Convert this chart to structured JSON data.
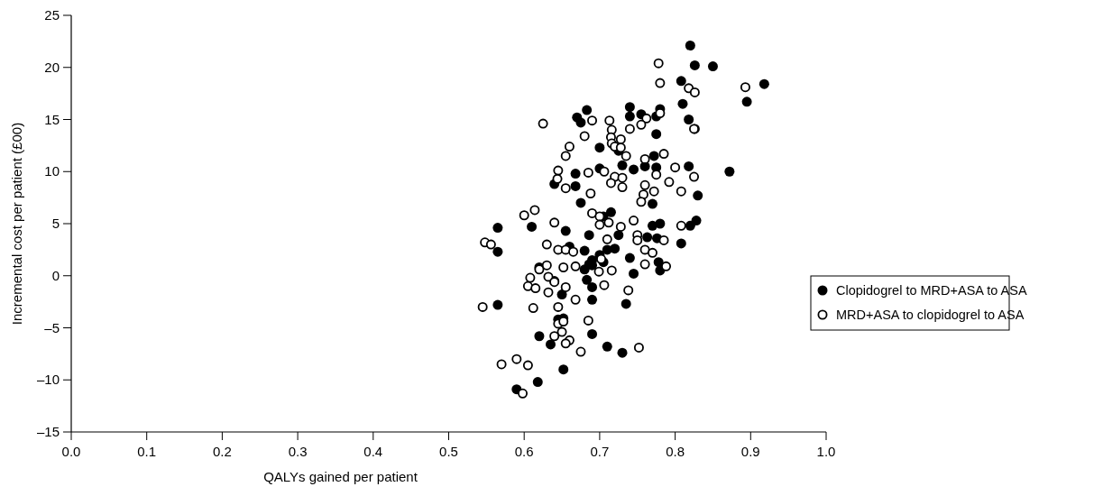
{
  "chart_data": {
    "type": "scatter",
    "xlabel": "QALYs gained per patient",
    "ylabel": "Incremental cost per patient (£00)",
    "xlim": [
      0,
      1
    ],
    "ylim": [
      -15,
      25
    ],
    "xticks": [
      {
        "value": 0,
        "label": "0.0"
      },
      {
        "value": 0.1,
        "label": "0.1"
      },
      {
        "value": 0.2,
        "label": "0.2"
      },
      {
        "value": 0.3,
        "label": "0.3"
      },
      {
        "value": 0.4,
        "label": "0.4"
      },
      {
        "value": 0.5,
        "label": "0.5"
      },
      {
        "value": 0.6,
        "label": "0.6"
      },
      {
        "value": 0.7,
        "label": "0.7"
      },
      {
        "value": 0.8,
        "label": "0.8"
      },
      {
        "value": 0.9,
        "label": "0.9"
      },
      {
        "value": 1,
        "label": "1.0"
      }
    ],
    "yticks": [
      {
        "value": -15,
        "label": "–15"
      },
      {
        "value": -10,
        "label": "–10"
      },
      {
        "value": -5,
        "label": "–5"
      },
      0,
      5,
      10,
      15,
      20,
      25
    ],
    "grid": false,
    "legend": "right",
    "marker": "circle",
    "series": [
      {
        "name": "Clopidogrel to MRD+ASA to ASA",
        "color": "#000000",
        "x": [
          0.82,
          0.826,
          0.85,
          0.918,
          0.808,
          0.895,
          0.81,
          0.818,
          0.826,
          0.78,
          0.775,
          0.755,
          0.74,
          0.74,
          0.683,
          0.67,
          0.675,
          0.725,
          0.73,
          0.7,
          0.7,
          0.745,
          0.76,
          0.775,
          0.775,
          0.772,
          0.818,
          0.872,
          0.83,
          0.64,
          0.668,
          0.668,
          0.675,
          0.77,
          0.77,
          0.78,
          0.82,
          0.828,
          0.808,
          0.776,
          0.763,
          0.778,
          0.78,
          0.745,
          0.74,
          0.725,
          0.72,
          0.715,
          0.705,
          0.686,
          0.655,
          0.565,
          0.565,
          0.61,
          0.66,
          0.68,
          0.69,
          0.7,
          0.69,
          0.705,
          0.71,
          0.686,
          0.68,
          0.683,
          0.62,
          0.64,
          0.65,
          0.69,
          0.735,
          0.565,
          0.69,
          0.645,
          0.652,
          0.62,
          0.635,
          0.69,
          0.71,
          0.73,
          0.652,
          0.59,
          0.618
        ],
        "values": [
          22.1,
          20.2,
          20.1,
          18.4,
          18.7,
          16.7,
          16.5,
          15,
          14.1,
          16,
          15.3,
          15.5,
          16.2,
          15.3,
          15.9,
          15.2,
          14.7,
          12,
          10.6,
          12.3,
          10.3,
          10.2,
          10.5,
          10.4,
          13.6,
          11.5,
          10.5,
          10,
          7.7,
          8.8,
          9.8,
          8.6,
          7,
          6.9,
          4.8,
          5,
          4.8,
          5.3,
          3.1,
          3.6,
          3.7,
          1.3,
          0.5,
          0.2,
          1.7,
          3.9,
          2.6,
          6.1,
          5.7,
          3.9,
          4.3,
          4.6,
          2.3,
          4.7,
          2.8,
          2.4,
          1.5,
          2,
          1,
          1.3,
          2.5,
          1.1,
          0.6,
          -0.4,
          0.8,
          -0.5,
          -1.8,
          -1.1,
          -2.7,
          -2.8,
          -2.3,
          -4.2,
          -4.1,
          -5.8,
          -6.6,
          -5.6,
          -6.8,
          -7.4,
          -9,
          -10.9,
          -10.2
        ]
      },
      {
        "name": "MRD+ASA to clopidogrel to ASA",
        "color": "#000000",
        "x": [
          0.778,
          0.78,
          0.818,
          0.826,
          0.893,
          0.825,
          0.78,
          0.762,
          0.755,
          0.74,
          0.713,
          0.716,
          0.715,
          0.716,
          0.72,
          0.728,
          0.728,
          0.69,
          0.68,
          0.66,
          0.655,
          0.625,
          0.76,
          0.735,
          0.785,
          0.8,
          0.792,
          0.808,
          0.825,
          0.775,
          0.772,
          0.76,
          0.758,
          0.755,
          0.72,
          0.715,
          0.73,
          0.73,
          0.706,
          0.685,
          0.688,
          0.645,
          0.644,
          0.655,
          0.6,
          0.614,
          0.64,
          0.69,
          0.7,
          0.7,
          0.712,
          0.728,
          0.745,
          0.75,
          0.75,
          0.76,
          0.77,
          0.76,
          0.785,
          0.788,
          0.808,
          0.548,
          0.556,
          0.63,
          0.645,
          0.655,
          0.665,
          0.668,
          0.652,
          0.63,
          0.62,
          0.608,
          0.632,
          0.64,
          0.605,
          0.615,
          0.632,
          0.655,
          0.668,
          0.699,
          0.702,
          0.71,
          0.716,
          0.706,
          0.738,
          0.545,
          0.612,
          0.645,
          0.645,
          0.652,
          0.65,
          0.64,
          0.66,
          0.685,
          0.675,
          0.655,
          0.752,
          0.57,
          0.59,
          0.605,
          0.598
        ],
        "values": [
          20.4,
          18.5,
          18,
          17.6,
          18.1,
          14.1,
          15.6,
          15.1,
          14.5,
          14.1,
          14.9,
          14,
          13.3,
          12.7,
          12.4,
          13.1,
          12.3,
          14.9,
          13.4,
          12.4,
          11.5,
          14.6,
          11.2,
          11.5,
          11.7,
          10.4,
          9,
          8.1,
          9.5,
          9.7,
          8.1,
          8.7,
          7.8,
          7.1,
          9.5,
          8.9,
          9.4,
          8.5,
          10,
          9.9,
          7.9,
          10.1,
          9.3,
          8.4,
          5.8,
          6.3,
          5.1,
          6,
          5.7,
          4.9,
          5.1,
          4.7,
          5.3,
          3.9,
          3.4,
          2.5,
          2.2,
          1.1,
          3.4,
          0.9,
          4.8,
          3.2,
          3,
          3,
          2.5,
          2.5,
          2.3,
          0.9,
          0.8,
          1,
          0.6,
          -0.2,
          -0.1,
          -0.6,
          -1,
          -1.2,
          -1.6,
          -1.1,
          -2.3,
          0.4,
          1.6,
          3.5,
          0.5,
          -0.9,
          -1.4,
          -3,
          -3.1,
          -3,
          -4.6,
          -4.4,
          -5.4,
          -5.8,
          -6.2,
          -4.3,
          -7.3,
          -6.5,
          -6.9,
          -8.5,
          -8,
          -8.6,
          -11.3
        ]
      }
    ]
  }
}
